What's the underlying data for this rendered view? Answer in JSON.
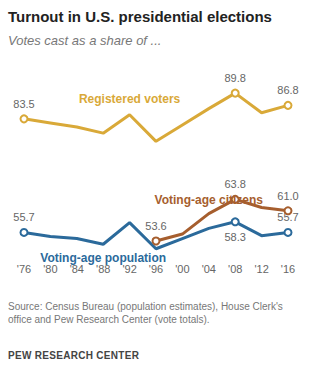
{
  "chart_data": {
    "type": "line",
    "title": "Turnout in U.S. presidential elections",
    "subtitle": "Votes cast as a share of ...",
    "source": "Source: Census Bureau (population estimates), House Clerk's office and Pew Research Center (vote totals).",
    "credit": "PEW RESEARCH CENTER",
    "categories": [
      "'76",
      "'80",
      "'84",
      "'88",
      "'92",
      "'96",
      "'00",
      "'04",
      "'08",
      "'12",
      "'16"
    ],
    "tick_labels": "x",
    "grid": false,
    "series": [
      {
        "name": "Registered voters",
        "color": "#d9a938",
        "marker": "circle",
        "values": [
          83.5,
          82.5,
          81.5,
          80.0,
          84.5,
          78.0,
          82.0,
          86.0,
          89.8,
          85.0,
          86.8
        ],
        "value_labels": [
          "83.5",
          null,
          null,
          null,
          null,
          null,
          null,
          null,
          "89.8",
          null,
          "86.8"
        ]
      },
      {
        "name": "Voting-age citizens",
        "color": "#a65e2e",
        "marker": "circle",
        "values": [
          null,
          null,
          null,
          null,
          null,
          53.6,
          55.3,
          60.3,
          63.8,
          61.8,
          61.0
        ],
        "value_labels": [
          null,
          null,
          null,
          null,
          null,
          "53.6",
          null,
          null,
          "63.8",
          null,
          "61.0"
        ]
      },
      {
        "name": "Voting-age population",
        "color": "#2b6a9b",
        "marker": "circle",
        "values": [
          55.7,
          54.7,
          54.2,
          52.8,
          58.1,
          51.7,
          54.2,
          56.7,
          58.3,
          54.9,
          55.7
        ],
        "value_labels": [
          "55.7",
          null,
          null,
          null,
          null,
          null,
          null,
          null,
          "58.3",
          null,
          "55.7"
        ]
      }
    ]
  }
}
